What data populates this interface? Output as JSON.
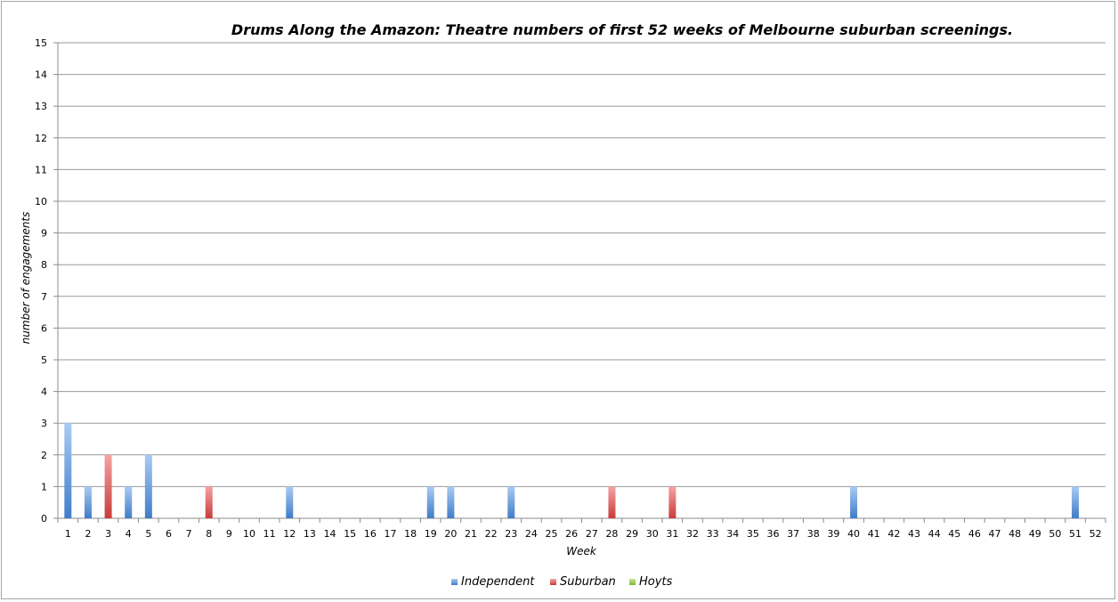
{
  "chart_data": {
    "type": "bar",
    "title": "Drums Along the Amazon: Theatre numbers of first 52 weeks of Melbourne suburban screenings.",
    "xlabel": "Week",
    "ylabel": "number of engagements",
    "ylim": [
      0,
      15
    ],
    "yticks": [
      "0",
      "1",
      "2",
      "3",
      "4",
      "5",
      "6",
      "7",
      "8",
      "9",
      "10",
      "11",
      "12",
      "13",
      "14",
      "15"
    ],
    "grid": true,
    "legend_position": "bottom",
    "categories": [
      "1",
      "2",
      "3",
      "4",
      "5",
      "6",
      "7",
      "8",
      "9",
      "10",
      "11",
      "12",
      "13",
      "14",
      "15",
      "16",
      "17",
      "18",
      "19",
      "20",
      "21",
      "22",
      "23",
      "24",
      "25",
      "26",
      "27",
      "28",
      "29",
      "30",
      "31",
      "32",
      "33",
      "34",
      "35",
      "36",
      "37",
      "38",
      "39",
      "40",
      "41",
      "42",
      "43",
      "44",
      "45",
      "46",
      "47",
      "48",
      "49",
      "50",
      "51",
      "52"
    ],
    "series": [
      {
        "name": "Independent",
        "color": "#4a86d4",
        "values": [
          3,
          1,
          0,
          1,
          2,
          0,
          0,
          0,
          0,
          0,
          0,
          1,
          0,
          0,
          0,
          0,
          0,
          0,
          1,
          1,
          0,
          0,
          1,
          0,
          0,
          0,
          0,
          0,
          0,
          0,
          0,
          0,
          0,
          0,
          0,
          0,
          0,
          0,
          0,
          1,
          0,
          0,
          0,
          0,
          0,
          0,
          0,
          0,
          0,
          0,
          1,
          0
        ]
      },
      {
        "name": "Suburban",
        "color": "#d94a4a",
        "values": [
          0,
          0,
          2,
          0,
          0,
          0,
          0,
          1,
          0,
          0,
          0,
          0,
          0,
          0,
          0,
          0,
          0,
          0,
          0,
          0,
          0,
          0,
          0,
          0,
          0,
          0,
          0,
          1,
          0,
          0,
          1,
          0,
          0,
          0,
          0,
          0,
          0,
          0,
          0,
          0,
          0,
          0,
          0,
          0,
          0,
          0,
          0,
          0,
          0,
          0,
          0,
          0
        ]
      },
      {
        "name": "Hoyts",
        "color": "#8dc63f",
        "values": [
          0,
          0,
          0,
          0,
          0,
          0,
          0,
          0,
          0,
          0,
          0,
          0,
          0,
          0,
          0,
          0,
          0,
          0,
          0,
          0,
          0,
          0,
          0,
          0,
          0,
          0,
          0,
          0,
          0,
          0,
          0,
          0,
          0,
          0,
          0,
          0,
          0,
          0,
          0,
          0,
          0,
          0,
          0,
          0,
          0,
          0,
          0,
          0,
          0,
          0,
          0,
          0
        ]
      }
    ]
  }
}
